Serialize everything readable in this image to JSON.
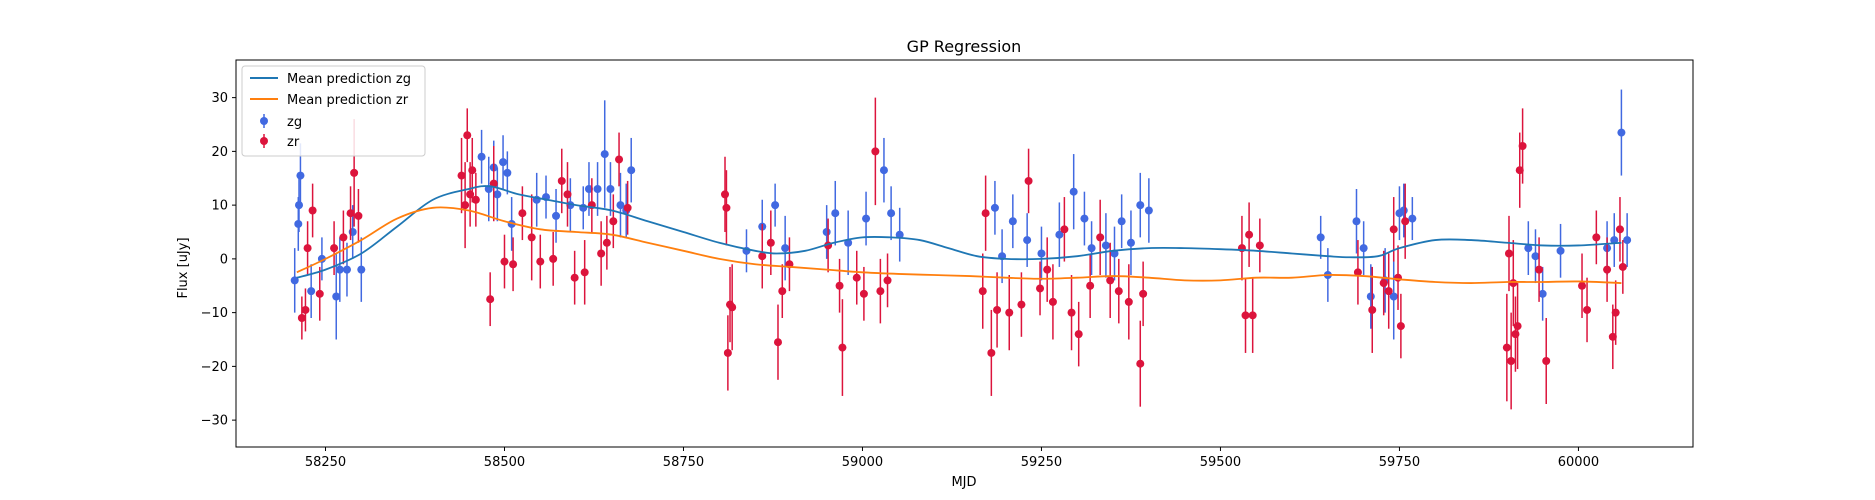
{
  "chart_data": {
    "type": "scatter",
    "title": "GP Regression",
    "xlabel": "MJD",
    "ylabel": "Flux [uJy]",
    "xlim": [
      58125,
      60160
    ],
    "ylim": [
      -35,
      37
    ],
    "xticks": [
      58250,
      58500,
      58750,
      59000,
      59250,
      59500,
      59750,
      60000
    ],
    "yticks": [
      -30,
      -20,
      -10,
      0,
      10,
      20,
      30
    ],
    "grid": false,
    "legend_position": "top-left",
    "legend": [
      "Mean prediction zg",
      "Mean prediction zr",
      "zg",
      "zr"
    ],
    "colors": {
      "zg_points": "#4169e1",
      "zr_points": "#dc143c",
      "zg_mean": "#1f77b4",
      "zr_mean": "#ff7f0e"
    },
    "lines": [
      {
        "name": "Mean prediction zg",
        "x": [
          58210,
          58250,
          58300,
          58350,
          58400,
          58450,
          58480,
          58520,
          58560,
          58600,
          58650,
          58700,
          58750,
          58800,
          58850,
          58880,
          58920,
          58960,
          59000,
          59040,
          59080,
          59120,
          59160,
          59200,
          59250,
          59300,
          59350,
          59400,
          59450,
          59500,
          59550,
          59600,
          59650,
          59680,
          59720,
          59750,
          59800,
          59850,
          59900,
          59950,
          60000,
          60060
        ],
        "y": [
          -3.5,
          -2,
          1,
          6,
          11,
          13,
          13.5,
          12,
          11,
          10,
          9,
          7,
          5,
          3,
          1.5,
          1,
          1.5,
          3,
          4,
          4,
          3.5,
          2,
          0.5,
          0,
          0,
          0.5,
          1.5,
          2,
          2,
          1.8,
          1.5,
          1,
          0.5,
          0.3,
          0.5,
          2,
          3.5,
          3.5,
          3,
          2.5,
          2.5,
          3
        ]
      },
      {
        "name": "Mean prediction zr",
        "x": [
          58210,
          58250,
          58300,
          58350,
          58400,
          58450,
          58500,
          58550,
          58600,
          58650,
          58700,
          58750,
          58800,
          58850,
          58900,
          58950,
          59000,
          59050,
          59100,
          59150,
          59200,
          59250,
          59300,
          59350,
          59400,
          59450,
          59500,
          59550,
          59600,
          59650,
          59700,
          59750,
          59800,
          59850,
          59900,
          59950,
          60000,
          60060
        ],
        "y": [
          -2.5,
          0,
          3.5,
          7.5,
          9.5,
          9,
          7,
          5.5,
          5,
          4.5,
          3,
          1.5,
          0,
          -1,
          -1.5,
          -2,
          -2.5,
          -2.8,
          -3,
          -3.2,
          -3.5,
          -3.7,
          -3.5,
          -3.2,
          -3.5,
          -4,
          -4,
          -3.5,
          -3.5,
          -3,
          -3.2,
          -3.8,
          -4.3,
          -4.5,
          -4.3,
          -4.3,
          -4.2,
          -4.5
        ]
      }
    ],
    "series": [
      {
        "name": "zg",
        "x": [
          58207,
          58212,
          58215,
          58213,
          58230,
          58245,
          58265,
          58270,
          58280,
          58288,
          58300,
          58468,
          58478,
          58485,
          58490,
          58498,
          58504,
          58510,
          58545,
          58558,
          58572,
          58592,
          58610,
          58618,
          58630,
          58640,
          58648,
          58662,
          58670,
          58677,
          58838,
          58860,
          58878,
          58892,
          58950,
          58962,
          58980,
          59005,
          59030,
          59040,
          59052,
          59185,
          59195,
          59210,
          59230,
          59250,
          59275,
          59295,
          59310,
          59320,
          59340,
          59352,
          59362,
          59375,
          59388,
          59400,
          59640,
          59650,
          59690,
          59700,
          59710,
          59730,
          59742,
          59750,
          59756,
          59768,
          59930,
          59940,
          59950,
          59975,
          60040,
          60050,
          60060,
          60068
        ],
        "y": [
          -4,
          6.5,
          15.5,
          10,
          -6,
          0,
          -7,
          -2,
          -2,
          5,
          -2,
          19,
          13,
          17,
          12,
          18,
          16,
          6.5,
          11,
          11.5,
          8,
          10,
          9.5,
          13,
          13,
          19.5,
          13,
          10,
          9,
          16.5,
          1.5,
          6,
          10,
          2,
          5,
          8.5,
          3,
          7.5,
          16.5,
          8.5,
          4.5,
          9.5,
          0.5,
          7,
          3.5,
          1,
          4.5,
          12.5,
          7.5,
          2,
          2.5,
          1,
          7,
          3,
          10,
          9,
          4,
          -3,
          7,
          2,
          -7,
          -4,
          -7,
          8.5,
          9,
          7.5,
          2,
          0.5,
          -6.5,
          1.5,
          2,
          3.5,
          23.5,
          3.5
        ],
        "err": [
          6,
          5,
          6,
          5,
          5,
          4,
          8,
          6,
          5,
          5,
          6,
          5,
          6,
          5,
          5,
          5,
          4,
          5,
          5,
          4,
          5,
          5,
          4,
          5,
          5,
          10,
          5,
          6,
          5,
          6,
          4,
          5,
          4,
          6,
          5,
          6,
          6,
          5,
          6,
          5,
          5,
          5,
          5,
          5,
          5,
          5,
          6,
          7,
          5,
          5,
          6,
          5,
          5,
          6,
          6,
          6,
          4,
          5,
          6,
          5,
          6,
          6,
          8,
          5,
          5,
          4,
          5,
          5,
          5,
          5,
          5,
          5,
          8,
          5
        ]
      },
      {
        "name": "zr",
        "x": [
          58217,
          58222,
          58225,
          58232,
          58242,
          58262,
          58275,
          58285,
          58290,
          58296,
          58440,
          58445,
          58448,
          58452,
          58455,
          58460,
          58480,
          58485,
          58500,
          58512,
          58525,
          58538,
          58550,
          58568,
          58580,
          58588,
          58598,
          58612,
          58622,
          58635,
          58643,
          58652,
          58660,
          58672,
          58808,
          58810,
          58812,
          58815,
          58818,
          58860,
          58872,
          58882,
          58888,
          58898,
          58952,
          58968,
          58972,
          58992,
          59002,
          59018,
          59025,
          59035,
          59168,
          59172,
          59180,
          59188,
          59205,
          59222,
          59232,
          59248,
          59258,
          59266,
          59282,
          59292,
          59302,
          59318,
          59332,
          59346,
          59358,
          59372,
          59388,
          59392,
          59530,
          59535,
          59540,
          59545,
          59555,
          59692,
          59712,
          59728,
          59735,
          59742,
          59748,
          59752,
          59758,
          59900,
          59903,
          59906,
          59909,
          59912,
          59915,
          59918,
          59922,
          59945,
          59955,
          60005,
          60012,
          60025,
          60040,
          60048,
          60052,
          60058,
          60062
        ],
        "y": [
          -11,
          -9.5,
          2,
          9,
          -6.5,
          2,
          4,
          8.5,
          16,
          8,
          15.5,
          10,
          23,
          12,
          16.5,
          11,
          -7.5,
          14,
          -0.5,
          -1,
          8.5,
          4,
          -0.5,
          0,
          14.5,
          12,
          -3.5,
          -2.5,
          10,
          1,
          3,
          7,
          18.5,
          9.5,
          12,
          9.5,
          -17.5,
          -8.5,
          -9,
          0.5,
          3,
          -15.5,
          -6,
          -1,
          2.5,
          -5,
          -16.5,
          -3.5,
          -6.5,
          20,
          -6,
          -4,
          -6,
          8.5,
          -17.5,
          -9.5,
          -10,
          -8.5,
          14.5,
          -5.5,
          -2,
          -8,
          5.5,
          -10,
          -14,
          -5,
          4,
          -4,
          -6,
          -8,
          -19.5,
          -6.5,
          2,
          -10.5,
          4.5,
          -10.5,
          2.5,
          -2.5,
          -9.5,
          -4.5,
          -6,
          5.5,
          -3.5,
          -12.5,
          7,
          -16.5,
          1,
          -19,
          -4.5,
          -14,
          -12.5,
          16.5,
          21,
          -2,
          -19,
          -5,
          -9.5,
          4,
          -2,
          -14.5,
          -10,
          5.5,
          -1.5
        ],
        "err": [
          4,
          4,
          5,
          5,
          5,
          5,
          5,
          5,
          10,
          5,
          7,
          8,
          5,
          6,
          6,
          5,
          5,
          7,
          5,
          5,
          5,
          8,
          5,
          5,
          6,
          6,
          5,
          6,
          5,
          6,
          5,
          5,
          5,
          5,
          7,
          7,
          7,
          7,
          8,
          6,
          6,
          7,
          5,
          5,
          5,
          5,
          9,
          5,
          5,
          10,
          6,
          5,
          7,
          7,
          8,
          7,
          7,
          6,
          6,
          5,
          6,
          7,
          6,
          7,
          6,
          6,
          7,
          7,
          6,
          7,
          8,
          6,
          6,
          7,
          6,
          7,
          5,
          6,
          8,
          6,
          7,
          6,
          6,
          6,
          7,
          10,
          7,
          9,
          8,
          7,
          8,
          7,
          7,
          6,
          8,
          6,
          6,
          5,
          6,
          6,
          6,
          6,
          5
        ]
      }
    ]
  }
}
